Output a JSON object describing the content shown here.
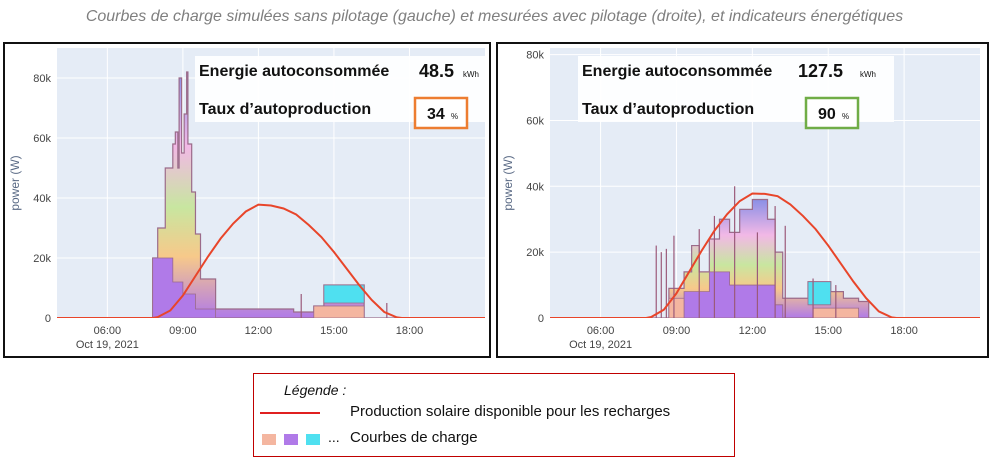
{
  "title": "Courbes de charge simulées sans pilotage (gauche) et mesurées avec pilotage (droite), et indicateurs énergétiques",
  "panels": {
    "left": {
      "energy_label": "Energie autoconsommée",
      "energy_value": "48.5",
      "energy_unit": "kWh",
      "rate_label": "Taux d’autoproduction",
      "rate_value": "34",
      "rate_unit": "%",
      "rate_box_color": "#ed7d31"
    },
    "right": {
      "energy_label": "Energie autoconsommée",
      "energy_value": "127.5",
      "energy_unit": "kWh",
      "rate_label": "Taux d’autoproduction",
      "rate_value": "90",
      "rate_unit": "%",
      "rate_box_color": "#70ad47"
    }
  },
  "legend": {
    "title": "Légende :",
    "solar_label": "Production solaire disponible pour les recharges",
    "charge_label": "Courbes de charge",
    "ellipsis": "...",
    "solar_color": "#e02020",
    "swatch_colors": [
      "#f4b6a0",
      "#b07ae8",
      "#4fe0f0"
    ]
  },
  "chart_data": [
    {
      "type": "area",
      "ylabel": "power (W)",
      "date_label": "Oct 19, 2021",
      "x_ticks": [
        "06:00",
        "09:00",
        "12:00",
        "15:00",
        "18:00"
      ],
      "y_ticks": [
        "0",
        "20k",
        "40k",
        "60k",
        "80k"
      ],
      "ylim": [
        0,
        90000
      ],
      "xlim_hours": [
        4,
        21
      ],
      "grid": true,
      "solar": {
        "name": "Production solaire disponible pour les recharges",
        "points": [
          [
            4,
            0
          ],
          [
            7.8,
            0
          ],
          [
            8,
            300
          ],
          [
            8.5,
            2500
          ],
          [
            9,
            7500
          ],
          [
            9.5,
            14000
          ],
          [
            10,
            20500
          ],
          [
            10.5,
            26500
          ],
          [
            11,
            31500
          ],
          [
            11.5,
            35500
          ],
          [
            12,
            37800
          ],
          [
            12.5,
            37500
          ],
          [
            13,
            36500
          ],
          [
            13.5,
            34500
          ],
          [
            14,
            31000
          ],
          [
            14.5,
            27000
          ],
          [
            15,
            22000
          ],
          [
            15.5,
            16500
          ],
          [
            16,
            11000
          ],
          [
            16.5,
            6000
          ],
          [
            17,
            2000
          ],
          [
            17.5,
            200
          ],
          [
            17.7,
            0
          ],
          [
            21,
            0
          ]
        ]
      },
      "charge_total": {
        "points": [
          [
            4,
            0
          ],
          [
            7.8,
            0
          ],
          [
            7.8,
            20000
          ],
          [
            8,
            20000
          ],
          [
            8,
            30000
          ],
          [
            8.3,
            30000
          ],
          [
            8.3,
            50000
          ],
          [
            8.6,
            50000
          ],
          [
            8.6,
            58000
          ],
          [
            8.7,
            58000
          ],
          [
            8.7,
            62000
          ],
          [
            8.8,
            62000
          ],
          [
            8.8,
            50000
          ],
          [
            8.85,
            50000
          ],
          [
            8.85,
            80000
          ],
          [
            8.95,
            80000
          ],
          [
            8.95,
            55000
          ],
          [
            9.05,
            55000
          ],
          [
            9.05,
            68000
          ],
          [
            9.15,
            68000
          ],
          [
            9.15,
            82000
          ],
          [
            9.2,
            82000
          ],
          [
            9.2,
            58000
          ],
          [
            9.35,
            58000
          ],
          [
            9.35,
            42000
          ],
          [
            9.5,
            42000
          ],
          [
            9.5,
            28000
          ],
          [
            9.7,
            28000
          ],
          [
            9.7,
            13000
          ],
          [
            10.3,
            13000
          ],
          [
            10.3,
            3000
          ],
          [
            13.2,
            3000
          ],
          [
            13.4,
            3000
          ],
          [
            13.4,
            2000
          ],
          [
            14.2,
            2000
          ],
          [
            14.2,
            4000
          ],
          [
            14.6,
            4000
          ],
          [
            14.6,
            11000
          ],
          [
            16.2,
            11000
          ],
          [
            16.2,
            0
          ],
          [
            21,
            0
          ]
        ]
      },
      "charge_bands": [
        {
          "color": "#b07ae8",
          "points": [
            [
              7.8,
              0
            ],
            [
              7.8,
              20000
            ],
            [
              8.6,
              20000
            ],
            [
              8.6,
              12000
            ],
            [
              9,
              12000
            ],
            [
              9,
              8000
            ],
            [
              9.5,
              8000
            ],
            [
              9.5,
              3000
            ],
            [
              10.3,
              3000
            ],
            [
              10.3,
              0
            ]
          ]
        },
        {
          "color": "#4fe0f0",
          "points": [
            [
              14.6,
              5000
            ],
            [
              14.6,
              11000
            ],
            [
              16.2,
              11000
            ],
            [
              16.2,
              5000
            ]
          ]
        },
        {
          "color": "#f4b6a0",
          "points": [
            [
              14.2,
              0
            ],
            [
              14.2,
              4000
            ],
            [
              16.2,
              4000
            ],
            [
              16.2,
              0
            ]
          ]
        }
      ],
      "spikes": [
        [
          13.7,
          8000
        ],
        [
          17.1,
          5000
        ]
      ]
    },
    {
      "type": "area",
      "ylabel": "power (W)",
      "date_label": "Oct 19, 2021",
      "x_ticks": [
        "06:00",
        "09:00",
        "12:00",
        "15:00",
        "18:00"
      ],
      "y_ticks": [
        "0",
        "20k",
        "40k",
        "60k",
        "80k"
      ],
      "ylim": [
        0,
        82000
      ],
      "xlim_hours": [
        4,
        21
      ],
      "grid": true,
      "solar": {
        "name": "Production solaire disponible pour les recharges",
        "points": [
          [
            4,
            0
          ],
          [
            7.8,
            0
          ],
          [
            8,
            300
          ],
          [
            8.5,
            2500
          ],
          [
            9,
            7500
          ],
          [
            9.5,
            14000
          ],
          [
            10,
            20500
          ],
          [
            10.5,
            26500
          ],
          [
            11,
            31500
          ],
          [
            11.5,
            35500
          ],
          [
            12,
            37800
          ],
          [
            12.5,
            37700
          ],
          [
            13,
            37000
          ],
          [
            13.5,
            34500
          ],
          [
            14,
            31000
          ],
          [
            14.5,
            27000
          ],
          [
            15,
            22000
          ],
          [
            15.5,
            16500
          ],
          [
            16,
            11000
          ],
          [
            16.5,
            6000
          ],
          [
            17,
            2000
          ],
          [
            17.5,
            200
          ],
          [
            17.7,
            0
          ],
          [
            21,
            0
          ]
        ]
      },
      "charge_total": {
        "points": [
          [
            4,
            0
          ],
          [
            8.7,
            0
          ],
          [
            8.7,
            9000
          ],
          [
            9.3,
            9000
          ],
          [
            9.3,
            14000
          ],
          [
            9.6,
            14000
          ],
          [
            9.6,
            22000
          ],
          [
            9.9,
            22000
          ],
          [
            9.9,
            14000
          ],
          [
            10.3,
            14000
          ],
          [
            10.3,
            24000
          ],
          [
            10.7,
            24000
          ],
          [
            10.7,
            30000
          ],
          [
            11.1,
            30000
          ],
          [
            11.1,
            26000
          ],
          [
            11.5,
            26000
          ],
          [
            11.5,
            33000
          ],
          [
            12,
            33000
          ],
          [
            12,
            36000
          ],
          [
            12.6,
            36000
          ],
          [
            12.6,
            30000
          ],
          [
            12.9,
            30000
          ],
          [
            12.9,
            20000
          ],
          [
            13.2,
            20000
          ],
          [
            13.2,
            6000
          ],
          [
            14.2,
            6000
          ],
          [
            14.2,
            11000
          ],
          [
            15.1,
            11000
          ],
          [
            15.1,
            8000
          ],
          [
            15.6,
            8000
          ],
          [
            15.6,
            6000
          ],
          [
            16.2,
            6000
          ],
          [
            16.2,
            5000
          ],
          [
            16.6,
            5000
          ],
          [
            16.6,
            0
          ],
          [
            21,
            0
          ]
        ]
      },
      "charge_bands": [
        {
          "color": "#b07ae8",
          "points": [
            [
              9.3,
              0
            ],
            [
              9.3,
              8000
            ],
            [
              10.3,
              8000
            ],
            [
              10.3,
              14000
            ],
            [
              11.1,
              14000
            ],
            [
              11.1,
              10000
            ],
            [
              12.9,
              10000
            ],
            [
              12.9,
              4000
            ],
            [
              13.2,
              4000
            ],
            [
              13.2,
              0
            ]
          ]
        },
        {
          "color": "#4fe0f0",
          "points": [
            [
              14.2,
              4000
            ],
            [
              14.2,
              11000
            ],
            [
              15.1,
              11000
            ],
            [
              15.1,
              4000
            ]
          ]
        },
        {
          "color": "#f4b6a0",
          "points": [
            [
              14.4,
              0
            ],
            [
              14.4,
              3000
            ],
            [
              16.2,
              3000
            ],
            [
              16.2,
              0
            ]
          ]
        },
        {
          "color": "#f4b6a0",
          "points": [
            [
              8.7,
              0
            ],
            [
              8.7,
              6000
            ],
            [
              9.3,
              6000
            ],
            [
              9.3,
              0
            ]
          ]
        }
      ],
      "spikes": [
        [
          8.2,
          22000
        ],
        [
          8.4,
          20000
        ],
        [
          8.6,
          21000
        ],
        [
          8.9,
          25000
        ],
        [
          9.9,
          27000
        ],
        [
          10.5,
          31000
        ],
        [
          11.3,
          40000
        ],
        [
          12.2,
          26000
        ],
        [
          12.9,
          34000
        ],
        [
          13.3,
          28000
        ],
        [
          14.4,
          12000
        ],
        [
          15.3,
          10000
        ]
      ]
    }
  ]
}
